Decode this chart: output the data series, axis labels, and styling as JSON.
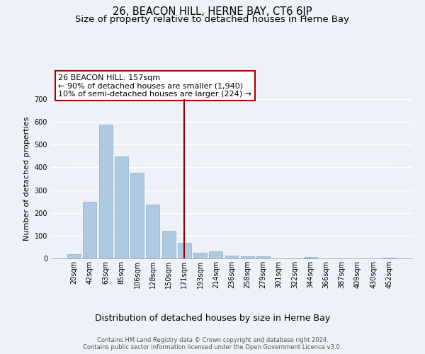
{
  "title": "26, BEACON HILL, HERNE BAY, CT6 6JP",
  "subtitle": "Size of property relative to detached houses in Herne Bay",
  "xlabel": "Distribution of detached houses by size in Herne Bay",
  "ylabel": "Number of detached properties",
  "categories": [
    "20sqm",
    "42sqm",
    "63sqm",
    "85sqm",
    "106sqm",
    "128sqm",
    "150sqm",
    "171sqm",
    "193sqm",
    "214sqm",
    "236sqm",
    "258sqm",
    "279sqm",
    "301sqm",
    "322sqm",
    "344sqm",
    "366sqm",
    "387sqm",
    "409sqm",
    "430sqm",
    "452sqm"
  ],
  "values": [
    18,
    248,
    588,
    448,
    375,
    235,
    120,
    68,
    24,
    31,
    13,
    10,
    8,
    0,
    0,
    5,
    0,
    0,
    0,
    0,
    2
  ],
  "bar_color": "#afc9e0",
  "bar_edge_color": "#8ab0cc",
  "vline_x": 7,
  "vline_color": "#8b0000",
  "annotation_box_text": "26 BEACON HILL: 157sqm\n← 90% of detached houses are smaller (1,940)\n10% of semi-detached houses are larger (224) →",
  "ylim": [
    0,
    700
  ],
  "yticks": [
    0,
    100,
    200,
    300,
    400,
    500,
    600,
    700
  ],
  "footer_text": "Contains HM Land Registry data © Crown copyright and database right 2024.\nContains public sector information licensed under the Open Government Licence v3.0.",
  "bg_color": "#eef2f8",
  "grid_color": "#ffffff",
  "title_fontsize": 10.5,
  "subtitle_fontsize": 9.5,
  "xlabel_fontsize": 9,
  "ylabel_fontsize": 8,
  "tick_fontsize": 7,
  "footer_fontsize": 6,
  "ann_fontsize": 8
}
